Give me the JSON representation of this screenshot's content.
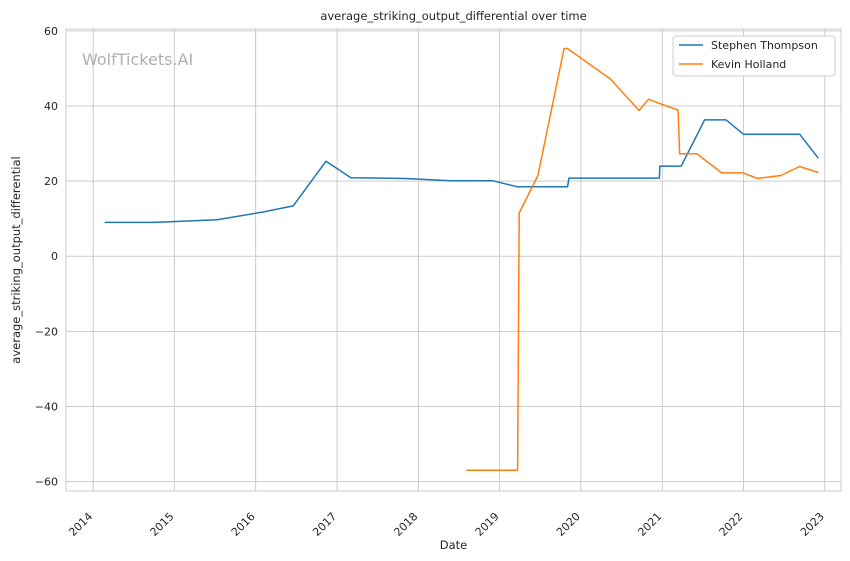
{
  "chart_data": {
    "type": "line",
    "title": "average_striking_output_differential over time",
    "xlabel": "Date",
    "ylabel": "average_striking_output_differential",
    "watermark": "WolfTickets.AI",
    "x_ticks": [
      "2014",
      "2015",
      "2016",
      "2017",
      "2018",
      "2019",
      "2020",
      "2021",
      "2022",
      "2023"
    ],
    "y_ticks": [
      -60,
      -40,
      -20,
      0,
      20,
      40,
      60
    ],
    "xlim": [
      "2013-09-01",
      "2023-03-15"
    ],
    "ylim": [
      -62.5,
      60.5
    ],
    "grid": true,
    "legend_position": "top-right",
    "colors": {
      "Stephen Thompson": "#1f77b4",
      "Kevin Holland": "#ff7f0e"
    },
    "series": [
      {
        "name": "Stephen Thompson",
        "points": [
          [
            "2014-02-22",
            9.0
          ],
          [
            "2014-10-04",
            9.0
          ],
          [
            "2015-07-12",
            9.7
          ],
          [
            "2016-02-06",
            11.8
          ],
          [
            "2016-06-18",
            13.4
          ],
          [
            "2016-11-12",
            25.3
          ],
          [
            "2017-03-04",
            20.9
          ],
          [
            "2017-11-04",
            20.7
          ],
          [
            "2018-05-27",
            20.1
          ],
          [
            "2018-11-30",
            20.1
          ],
          [
            "2019-03-23",
            18.5
          ],
          [
            "2019-11-02",
            18.5
          ],
          [
            "2019-11-09",
            20.8
          ],
          [
            "2020-12-19",
            20.8
          ],
          [
            "2020-12-21",
            24.0
          ],
          [
            "2021-03-27",
            24.0
          ],
          [
            "2021-07-10",
            36.3
          ],
          [
            "2021-10-15",
            36.3
          ],
          [
            "2021-12-31",
            32.5
          ],
          [
            "2022-09-10",
            32.5
          ],
          [
            "2022-12-03",
            26.1
          ]
        ]
      },
      {
        "name": "Kevin Holland",
        "points": [
          [
            "2018-08-04",
            -57.0
          ],
          [
            "2019-03-23",
            -57.0
          ],
          [
            "2019-03-30",
            11.5
          ],
          [
            "2019-06-22",
            21.5
          ],
          [
            "2019-10-18",
            55.3
          ],
          [
            "2019-11-02",
            55.3
          ],
          [
            "2020-05-13",
            47.2
          ],
          [
            "2020-09-19",
            38.8
          ],
          [
            "2020-10-31",
            41.8
          ],
          [
            "2020-12-19",
            40.7
          ],
          [
            "2021-03-13",
            38.9
          ],
          [
            "2021-03-20",
            27.3
          ],
          [
            "2021-06-05",
            27.3
          ],
          [
            "2021-09-25",
            22.2
          ],
          [
            "2021-12-31",
            22.2
          ],
          [
            "2022-03-05",
            20.7
          ],
          [
            "2022-06-18",
            21.5
          ],
          [
            "2022-09-10",
            23.9
          ],
          [
            "2022-12-03",
            22.3
          ]
        ]
      }
    ]
  }
}
